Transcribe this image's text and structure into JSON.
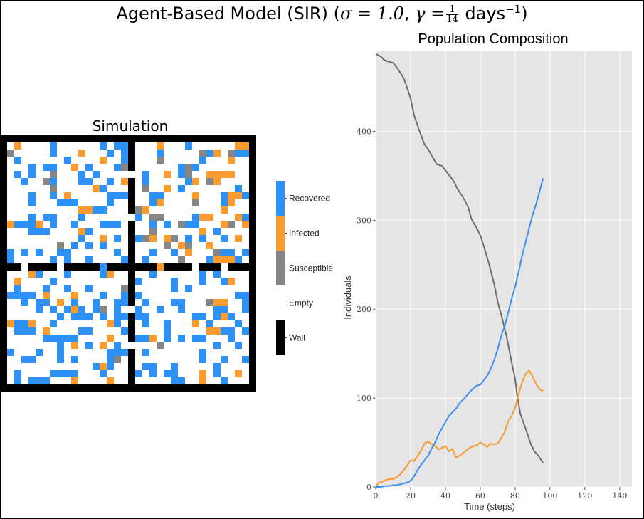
{
  "title": {
    "prefix": "Agent-Based Model (SIR) (",
    "sigma_math": "σ = 1.0",
    "gamma_math": "γ =",
    "frac_num": "1",
    "frac_den": "14",
    "unit": "days",
    "exp": "−1",
    "suffix": ")"
  },
  "simulation": {
    "title": "Simulation",
    "grid_size": 36,
    "colors": {
      "empty": "#ffffff",
      "recovered": "#2e91f5",
      "infected": "#f99b2e",
      "susceptible": "#868686",
      "wall": "#000000"
    }
  },
  "legend": {
    "items": [
      {
        "label": "Recovered",
        "color": "#2e91f5"
      },
      {
        "label": "Infected",
        "color": "#f99b2e"
      },
      {
        "label": "Susceptible",
        "color": "#868686"
      },
      {
        "label": "Empty",
        "color": "#ffffff"
      },
      {
        "label": "Wall",
        "color": "#000000"
      }
    ]
  },
  "chart_data": {
    "type": "line",
    "title": "Population Composition",
    "xlabel": "Time (steps)",
    "ylabel": "Individuals",
    "xlim": [
      0,
      147
    ],
    "ylim": [
      0,
      490
    ],
    "xticks": [
      0,
      20,
      40,
      60,
      80,
      100,
      120,
      140
    ],
    "yticks": [
      0,
      100,
      200,
      300,
      400
    ],
    "grid": true,
    "background": "#e5e5e5",
    "series": [
      {
        "color": "#6e6e6e",
        "x": [
          0,
          3,
          5,
          8,
          10,
          12,
          14,
          16,
          18,
          20,
          22,
          25,
          28,
          30,
          32,
          35,
          38,
          40,
          42,
          45,
          47,
          50,
          53,
          55,
          58,
          60,
          62,
          65,
          68,
          70,
          72,
          75,
          77,
          78,
          80,
          81,
          83,
          85,
          87,
          89,
          91,
          93,
          95,
          96
        ],
        "y": [
          487,
          484,
          480,
          478,
          477,
          472,
          466,
          460,
          449,
          437,
          418,
          401,
          385,
          380,
          373,
          363,
          361,
          356,
          351,
          343,
          335,
          326,
          315,
          301,
          291,
          283,
          271,
          251,
          228,
          208,
          194,
          170,
          150,
          140,
          122,
          105,
          82,
          71,
          60,
          48,
          40,
          36,
          30,
          27
        ]
      },
      {
        "color": "#f79a2e",
        "x": [
          0,
          2,
          4,
          6,
          8,
          10,
          12,
          14,
          16,
          18,
          20,
          22,
          24,
          26,
          28,
          30,
          32,
          34,
          36,
          38,
          40,
          42,
          44,
          46,
          48,
          50,
          52,
          54,
          56,
          58,
          60,
          62,
          64,
          66,
          68,
          70,
          72,
          74,
          76,
          78,
          80,
          82,
          84,
          86,
          88,
          90,
          92,
          94,
          96
        ],
        "y": [
          1,
          5,
          6,
          8,
          9,
          9,
          11,
          14,
          19,
          24,
          30,
          29,
          35,
          41,
          49,
          51,
          48,
          46,
          42,
          44,
          46,
          40,
          43,
          33,
          35,
          38,
          41,
          44,
          46,
          47,
          50,
          48,
          45,
          49,
          48,
          49,
          55,
          62,
          74,
          80,
          89,
          105,
          118,
          127,
          131,
          124,
          116,
          110,
          108
        ]
      },
      {
        "color": "#3d8ff2",
        "x": [
          0,
          3,
          5,
          8,
          10,
          12,
          14,
          16,
          18,
          20,
          22,
          24,
          26,
          28,
          30,
          32,
          34,
          36,
          38,
          40,
          42,
          44,
          46,
          48,
          50,
          52,
          54,
          56,
          58,
          60,
          62,
          64,
          66,
          68,
          70,
          72,
          74,
          76,
          78,
          80,
          82,
          84,
          86,
          88,
          90,
          92,
          94,
          96
        ],
        "y": [
          0,
          0,
          1,
          1,
          2,
          2,
          3,
          4,
          5,
          7,
          12,
          19,
          25,
          30,
          35,
          43,
          50,
          59,
          66,
          73,
          80,
          84,
          88,
          94,
          98,
          102,
          107,
          111,
          114,
          115,
          120,
          125,
          133,
          143,
          155,
          170,
          181,
          196,
          212,
          225,
          242,
          260,
          275,
          291,
          306,
          318,
          332,
          347
        ]
      }
    ]
  }
}
